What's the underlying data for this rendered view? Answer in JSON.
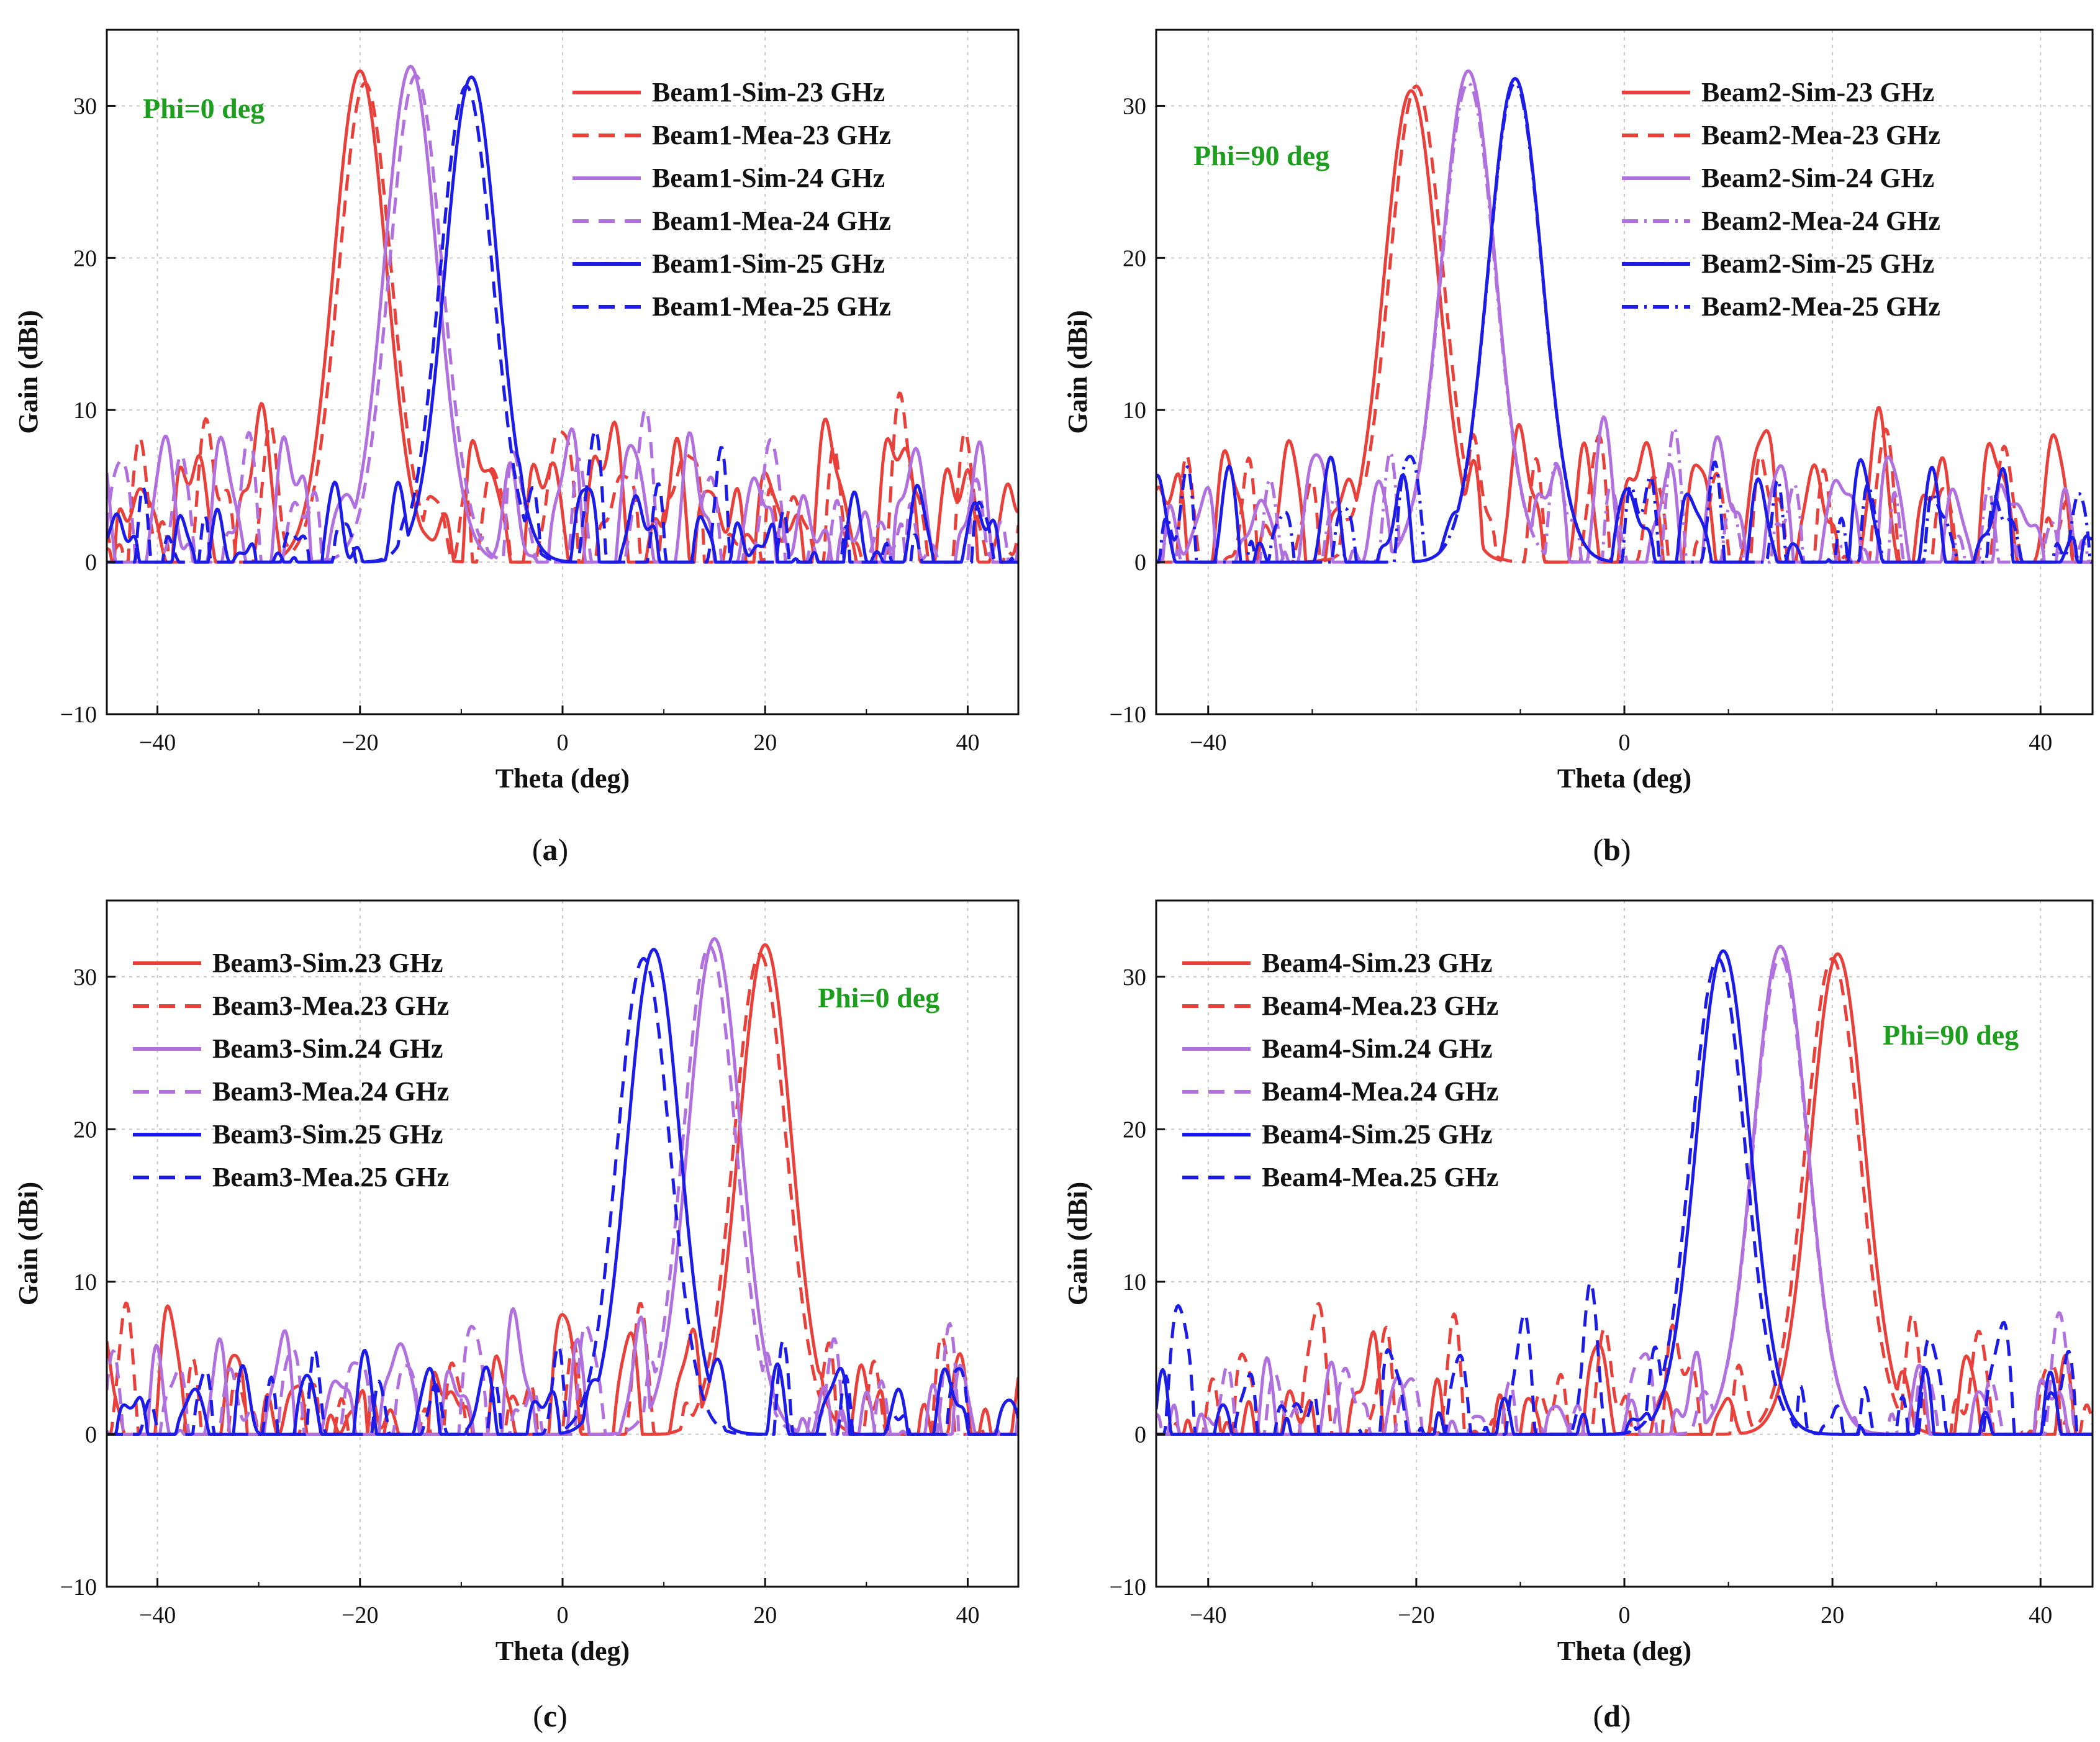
{
  "figure": {
    "colors": {
      "red": "#e8403a",
      "violet": "#b070de",
      "blue": "#1c1ce6",
      "green": "#1e9e1e",
      "grid": "#c8c8c8"
    }
  },
  "chart_data": [
    {
      "id": "a",
      "type": "line",
      "caption_letter": "a",
      "annotation": "Phi=0 deg",
      "annotation_placement": "top-left",
      "legend_placement": "top-right",
      "xlabel": "Theta (deg)",
      "ylabel": "Gain (dBi)",
      "xlim": [
        -45,
        45
      ],
      "ylim": [
        -10,
        35
      ],
      "xticks": [
        -40,
        -20,
        0,
        20,
        40
      ],
      "yticks": [
        -10,
        0,
        10,
        20,
        30
      ],
      "grid": true,
      "series": [
        {
          "name": "Beam1-Sim-23 GHz",
          "color": "#e8403a",
          "dash": "solid",
          "peak_theta": -20,
          "peak_gain": 32.3,
          "sidelobe_level": 5.5,
          "noise_amp": 4.5,
          "seed": 1
        },
        {
          "name": "Beam1-Mea-23 GHz",
          "color": "#e8403a",
          "dash": "dashed",
          "peak_theta": -19.5,
          "peak_gain": 31.5,
          "sidelobe_level": 4.5,
          "noise_amp": 6,
          "seed": 2
        },
        {
          "name": "Beam1-Sim-24 GHz",
          "color": "#b070de",
          "dash": "solid",
          "peak_theta": -15,
          "peak_gain": 32.6,
          "sidelobe_level": 4.5,
          "noise_amp": 5,
          "seed": 3
        },
        {
          "name": "Beam1-Mea-24 GHz",
          "color": "#b070de",
          "dash": "dashed",
          "peak_theta": -14.5,
          "peak_gain": 32.0,
          "sidelobe_level": 3,
          "noise_amp": 6,
          "seed": 4
        },
        {
          "name": "Beam1-Sim-25 GHz",
          "color": "#1c1ce6",
          "dash": "solid",
          "peak_theta": -9,
          "peak_gain": 31.9,
          "sidelobe_level": 2.5,
          "noise_amp": 4.5,
          "seed": 5
        },
        {
          "name": "Beam1-Mea-25 GHz",
          "color": "#1c1ce6",
          "dash": "dashed",
          "peak_theta": -9.5,
          "peak_gain": 31.3,
          "sidelobe_level": 1,
          "noise_amp": 7,
          "seed": 6
        }
      ]
    },
    {
      "id": "b",
      "type": "line",
      "caption_letter": "b",
      "annotation": "Phi=90 deg",
      "annotation_placement": "top-left",
      "legend_placement": "top-right",
      "xlabel": "Theta (deg)",
      "ylabel": "Gain (dBi)",
      "xlim": [
        -45,
        45
      ],
      "ylim": [
        -10,
        35
      ],
      "xticks": [
        -40,
        0,
        40
      ],
      "yticks": [
        -10,
        0,
        10,
        20,
        30
      ],
      "grid": true,
      "series": [
        {
          "name": "Beam2-Sim-23 GHz",
          "color": "#e8403a",
          "dash": "solid",
          "peak_theta": -20.5,
          "peak_gain": 31.0,
          "sidelobe_level": 4.5,
          "noise_amp": 5,
          "seed": 11
        },
        {
          "name": "Beam2-Mea-23 GHz",
          "color": "#e8403a",
          "dash": "dashed",
          "peak_theta": -20,
          "peak_gain": 31.3,
          "sidelobe_level": 2.5,
          "noise_amp": 6,
          "seed": 12
        },
        {
          "name": "Beam2-Sim-24 GHz",
          "color": "#b070de",
          "dash": "solid",
          "peak_theta": -15,
          "peak_gain": 32.3,
          "sidelobe_level": 4,
          "noise_amp": 5,
          "seed": 13
        },
        {
          "name": "Beam2-Mea-24 GHz",
          "color": "#b070de",
          "dash": "dashdot",
          "peak_theta": -15,
          "peak_gain": 31.5,
          "sidelobe_level": 2,
          "noise_amp": 6,
          "seed": 14
        },
        {
          "name": "Beam2-Sim-25 GHz",
          "color": "#1c1ce6",
          "dash": "solid",
          "peak_theta": -10.5,
          "peak_gain": 31.8,
          "sidelobe_level": 2.5,
          "noise_amp": 5,
          "seed": 15
        },
        {
          "name": "Beam2-Mea-25 GHz",
          "color": "#1c1ce6",
          "dash": "dashdot",
          "peak_theta": -10.5,
          "peak_gain": 31.5,
          "sidelobe_level": 1.5,
          "noise_amp": 6,
          "seed": 16
        }
      ]
    },
    {
      "id": "c",
      "type": "line",
      "caption_letter": "c",
      "annotation": "Phi=0 deg",
      "annotation_placement": "top-right",
      "legend_placement": "top-left",
      "xlabel": "Theta (deg)",
      "ylabel": "Gain (dBi)",
      "xlim": [
        -45,
        45
      ],
      "ylim": [
        -10,
        35
      ],
      "xticks": [
        -40,
        -20,
        0,
        20,
        40
      ],
      "yticks": [
        -10,
        0,
        10,
        20,
        30
      ],
      "grid": true,
      "series": [
        {
          "name": "Beam3-Sim.23 GHz",
          "color": "#e8403a",
          "dash": "solid",
          "peak_theta": 20,
          "peak_gain": 32.1,
          "sidelobe_level": 3,
          "noise_amp": 5.5,
          "seed": 21
        },
        {
          "name": "Beam3-Mea.23 GHz",
          "color": "#e8403a",
          "dash": "dashed",
          "peak_theta": 19.5,
          "peak_gain": 31.5,
          "sidelobe_level": 1.5,
          "noise_amp": 6.5,
          "seed": 22
        },
        {
          "name": "Beam3-Sim.24 GHz",
          "color": "#b070de",
          "dash": "solid",
          "peak_theta": 15,
          "peak_gain": 32.5,
          "sidelobe_level": 2.5,
          "noise_amp": 5.5,
          "seed": 23
        },
        {
          "name": "Beam3-Mea.24 GHz",
          "color": "#b070de",
          "dash": "dashed",
          "peak_theta": 14.5,
          "peak_gain": 32.0,
          "sidelobe_level": 1.5,
          "noise_amp": 6.5,
          "seed": 24
        },
        {
          "name": "Beam3-Sim.25 GHz",
          "color": "#1c1ce6",
          "dash": "solid",
          "peak_theta": 9,
          "peak_gain": 31.8,
          "sidelobe_level": 1.5,
          "noise_amp": 4,
          "seed": 25
        },
        {
          "name": "Beam3-Mea.25 GHz",
          "color": "#1c1ce6",
          "dash": "dashed",
          "peak_theta": 8,
          "peak_gain": 31.2,
          "sidelobe_level": -1,
          "noise_amp": 7,
          "seed": 26
        }
      ]
    },
    {
      "id": "d",
      "type": "line",
      "caption_letter": "d",
      "annotation": "Phi=90 deg",
      "annotation_placement": "top-right",
      "legend_placement": "top-left",
      "xlabel": "Theta (deg)",
      "ylabel": "Gain (dBi)",
      "xlim": [
        -45,
        45
      ],
      "ylim": [
        -10,
        35
      ],
      "xticks": [
        -40,
        -20,
        0,
        20,
        40
      ],
      "yticks": [
        -10,
        0,
        10,
        20,
        30
      ],
      "grid": true,
      "series": [
        {
          "name": "Beam4-Sim.23 GHz",
          "color": "#e8403a",
          "dash": "solid",
          "peak_theta": 20.5,
          "peak_gain": 31.5,
          "sidelobe_level": 1.5,
          "noise_amp": 5,
          "seed": 31
        },
        {
          "name": "Beam4-Mea.23 GHz",
          "color": "#e8403a",
          "dash": "dashed",
          "peak_theta": 20,
          "peak_gain": 31.2,
          "sidelobe_level": 2.5,
          "noise_amp": 6.5,
          "seed": 32
        },
        {
          "name": "Beam4-Sim.24 GHz",
          "color": "#b070de",
          "dash": "solid",
          "peak_theta": 15,
          "peak_gain": 32.0,
          "sidelobe_level": 0.5,
          "noise_amp": 5,
          "seed": 33
        },
        {
          "name": "Beam4-Mea.24 GHz",
          "color": "#b070de",
          "dash": "dashed",
          "peak_theta": 15,
          "peak_gain": 31.3,
          "sidelobe_level": 1,
          "noise_amp": 6.5,
          "seed": 34
        },
        {
          "name": "Beam4-Sim.25 GHz",
          "color": "#1c1ce6",
          "dash": "solid",
          "peak_theta": 9.5,
          "peak_gain": 31.7,
          "sidelobe_level": -1,
          "noise_amp": 5,
          "seed": 35
        },
        {
          "name": "Beam4-Mea.25 GHz",
          "color": "#1c1ce6",
          "dash": "dashed",
          "peak_theta": 9,
          "peak_gain": 31.2,
          "sidelobe_level": 2.5,
          "noise_amp": 6.5,
          "seed": 36
        }
      ]
    }
  ]
}
